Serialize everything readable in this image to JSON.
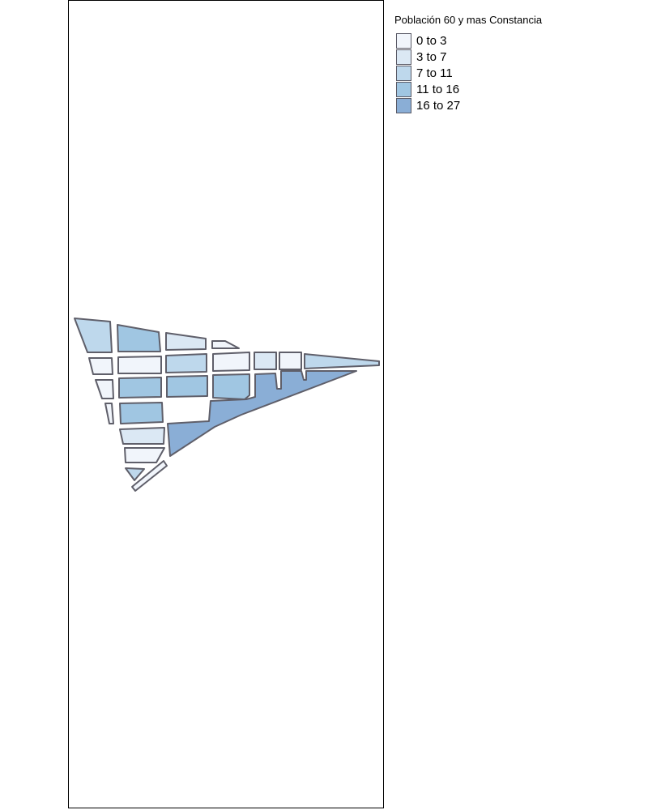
{
  "legend": {
    "title": "Población 60 y mas Constancia",
    "classes": [
      {
        "label": "0 to 3",
        "color": "#f1f5fb"
      },
      {
        "label": "3 to 7",
        "color": "#dbe8f4"
      },
      {
        "label": "7 to 11",
        "color": "#bed8ec"
      },
      {
        "label": "11 to 16",
        "color": "#a0c6e2"
      },
      {
        "label": "16 to 27",
        "color": "#8aaed6"
      }
    ]
  },
  "map": {
    "palette": {
      "c0": "#f1f5fb",
      "c1": "#dbe8f4",
      "c2": "#bed8ec",
      "c3": "#a0c6e2",
      "c4": "#8aaed6"
    },
    "outline_color": "#5f5f6a"
  }
}
